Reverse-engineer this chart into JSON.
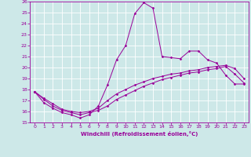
{
  "xlabel": "Windchill (Refroidissement éolien,°C)",
  "bg_color": "#cde8e8",
  "grid_color": "#ffffff",
  "line_color": "#990099",
  "xlim": [
    -0.5,
    23.5
  ],
  "ylim": [
    15,
    26
  ],
  "xticks": [
    0,
    1,
    2,
    3,
    4,
    5,
    6,
    7,
    8,
    9,
    10,
    11,
    12,
    13,
    14,
    15,
    16,
    17,
    18,
    19,
    20,
    21,
    22,
    23
  ],
  "yticks": [
    15,
    16,
    17,
    18,
    19,
    20,
    21,
    22,
    23,
    24,
    25,
    26
  ],
  "series": [
    {
      "x": [
        0,
        1,
        2,
        3,
        4,
        5,
        6,
        7,
        8,
        9,
        10,
        11,
        12,
        13,
        14,
        15,
        16,
        17,
        18,
        19,
        20,
        21,
        22,
        23
      ],
      "y": [
        17.8,
        16.8,
        16.3,
        15.9,
        15.7,
        15.4,
        15.7,
        16.5,
        18.4,
        20.7,
        22.0,
        24.9,
        25.9,
        25.4,
        21.0,
        20.9,
        20.8,
        21.5,
        21.5,
        20.7,
        20.4,
        19.3,
        18.5,
        18.5
      ]
    },
    {
      "x": [
        0,
        1,
        2,
        3,
        4,
        5,
        6,
        7,
        8,
        9,
        10,
        11,
        12,
        13,
        14,
        15,
        16,
        17,
        18,
        19,
        20,
        21,
        22,
        23
      ],
      "y": [
        17.8,
        17.2,
        16.7,
        16.2,
        16.0,
        15.9,
        16.0,
        16.3,
        17.0,
        17.6,
        18.0,
        18.4,
        18.7,
        19.0,
        19.2,
        19.4,
        19.5,
        19.7,
        19.8,
        20.0,
        20.1,
        20.2,
        19.9,
        19.0
      ]
    },
    {
      "x": [
        0,
        1,
        2,
        3,
        4,
        5,
        6,
        7,
        8,
        9,
        10,
        11,
        12,
        13,
        14,
        15,
        16,
        17,
        18,
        19,
        20,
        21,
        22,
        23
      ],
      "y": [
        17.8,
        17.1,
        16.5,
        16.1,
        15.9,
        15.7,
        15.9,
        16.1,
        16.5,
        17.1,
        17.5,
        17.9,
        18.3,
        18.6,
        18.9,
        19.1,
        19.3,
        19.5,
        19.6,
        19.8,
        19.9,
        20.1,
        19.4,
        18.6
      ]
    }
  ]
}
